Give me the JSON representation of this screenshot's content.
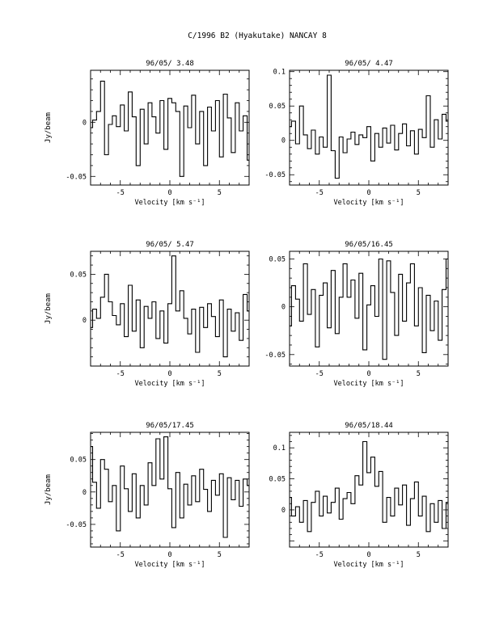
{
  "figure": {
    "title": "C/1996 B2 (Hyakutake)   NANCAY     8"
  },
  "chart_data": [
    {
      "type": "line",
      "title": "96/05/ 3.48",
      "xlabel": "Velocity [km s⁻¹]",
      "ylabel": "Jy/beam",
      "xlim": [
        -8,
        8
      ],
      "ylim": [
        -0.058,
        0.048
      ],
      "xticks": [
        -5,
        0,
        5
      ],
      "yticks": [
        -0.05,
        0
      ],
      "ytick_labels": [
        "-0.05",
        "0"
      ],
      "series": [
        {
          "x": [
            -8.0,
            -7.6,
            -7.2,
            -6.8,
            -6.4,
            -6.0,
            -5.6,
            -5.2,
            -4.8,
            -4.4,
            -4.0,
            -3.6,
            -3.2,
            -2.8,
            -2.4,
            -2.0,
            -1.6,
            -1.2,
            -0.8,
            -0.4,
            0.0,
            0.4,
            0.8,
            1.2,
            1.6,
            2.0,
            2.4,
            2.8,
            3.2,
            3.6,
            4.0,
            4.4,
            4.8,
            5.2,
            5.6,
            6.0,
            6.4,
            6.8,
            7.2,
            7.6,
            8.0
          ],
          "values": [
            -0.005,
            0.002,
            0.01,
            0.038,
            -0.03,
            -0.002,
            0.006,
            -0.004,
            0.016,
            -0.008,
            0.028,
            0.005,
            -0.04,
            0.012,
            -0.02,
            0.018,
            0.005,
            -0.01,
            0.02,
            -0.025,
            0.022,
            0.018,
            0.01,
            -0.05,
            0.015,
            -0.005,
            0.025,
            -0.02,
            0.01,
            -0.04,
            0.014,
            -0.008,
            0.02,
            -0.032,
            0.026,
            0.004,
            -0.028,
            0.018,
            -0.008,
            0.006,
            -0.035
          ]
        }
      ]
    },
    {
      "type": "line",
      "title": "96/05/ 4.47",
      "xlabel": "Velocity [km s⁻¹]",
      "ylabel": "",
      "xlim": [
        -8,
        8
      ],
      "ylim": [
        -0.065,
        0.102
      ],
      "xticks": [
        -5,
        0,
        5
      ],
      "yticks": [
        -0.05,
        0,
        0.05,
        0.1
      ],
      "ytick_labels": [
        "-0.05",
        "0",
        "0.05",
        "0.1"
      ],
      "series": [
        {
          "x": [
            -8.0,
            -7.6,
            -7.2,
            -6.8,
            -6.4,
            -6.0,
            -5.6,
            -5.2,
            -4.8,
            -4.4,
            -4.0,
            -3.6,
            -3.2,
            -2.8,
            -2.4,
            -2.0,
            -1.6,
            -1.2,
            -0.8,
            -0.4,
            0.0,
            0.4,
            0.8,
            1.2,
            1.6,
            2.0,
            2.4,
            2.8,
            3.2,
            3.6,
            4.0,
            4.4,
            4.8,
            5.2,
            5.6,
            6.0,
            6.4,
            6.8,
            7.2,
            7.6,
            8.0
          ],
          "values": [
            0.02,
            0.028,
            -0.005,
            0.05,
            0.008,
            -0.012,
            0.015,
            -0.02,
            0.005,
            -0.01,
            0.095,
            -0.015,
            -0.055,
            0.005,
            -0.018,
            0.002,
            0.012,
            -0.006,
            0.008,
            0.004,
            0.02,
            -0.03,
            0.01,
            -0.01,
            0.018,
            -0.004,
            0.022,
            -0.014,
            0.01,
            0.024,
            -0.008,
            0.014,
            -0.02,
            0.016,
            0.004,
            0.065,
            -0.01,
            0.03,
            0.002,
            0.038,
            0.028
          ]
        }
      ]
    },
    {
      "type": "line",
      "title": "96/05/ 5.47",
      "xlabel": "Velocity [km s⁻¹]",
      "ylabel": "Jy/beam",
      "xlim": [
        -8,
        8
      ],
      "ylim": [
        -0.05,
        0.075
      ],
      "xticks": [
        -5,
        0,
        5
      ],
      "yticks": [
        0,
        0.05
      ],
      "ytick_labels": [
        "0",
        "0.05"
      ],
      "series": [
        {
          "x": [
            -8.0,
            -7.6,
            -7.2,
            -6.8,
            -6.4,
            -6.0,
            -5.6,
            -5.2,
            -4.8,
            -4.4,
            -4.0,
            -3.6,
            -3.2,
            -2.8,
            -2.4,
            -2.0,
            -1.6,
            -1.2,
            -0.8,
            -0.4,
            0.0,
            0.4,
            0.8,
            1.2,
            1.6,
            2.0,
            2.4,
            2.8,
            3.2,
            3.6,
            4.0,
            4.4,
            4.8,
            5.2,
            5.6,
            6.0,
            6.4,
            6.8,
            7.2,
            7.6,
            8.0
          ],
          "values": [
            -0.008,
            0.012,
            0.002,
            0.025,
            0.05,
            0.02,
            0.005,
            -0.005,
            0.018,
            -0.018,
            0.038,
            -0.012,
            0.022,
            -0.03,
            0.015,
            0.002,
            0.02,
            -0.02,
            0.01,
            -0.025,
            0.018,
            0.07,
            0.01,
            0.032,
            0.002,
            -0.015,
            0.012,
            -0.035,
            0.014,
            -0.008,
            0.018,
            0.004,
            -0.018,
            0.022,
            -0.04,
            0.012,
            -0.012,
            0.008,
            -0.022,
            0.028,
            0.01
          ]
        }
      ]
    },
    {
      "type": "line",
      "title": "96/05/16.45",
      "xlabel": "Velocity [km s⁻¹]",
      "ylabel": "",
      "xlim": [
        -8,
        8
      ],
      "ylim": [
        -0.062,
        0.058
      ],
      "xticks": [
        -5,
        0,
        5
      ],
      "yticks": [
        -0.05,
        0,
        0.05
      ],
      "ytick_labels": [
        "-0.05",
        "0",
        "0.05"
      ],
      "series": [
        {
          "x": [
            -8.0,
            -7.6,
            -7.2,
            -6.8,
            -6.4,
            -6.0,
            -5.6,
            -5.2,
            -4.8,
            -4.4,
            -4.0,
            -3.6,
            -3.2,
            -2.8,
            -2.4,
            -2.0,
            -1.6,
            -1.2,
            -0.8,
            -0.4,
            0.0,
            0.4,
            0.8,
            1.2,
            1.6,
            2.0,
            2.4,
            2.8,
            3.2,
            3.6,
            4.0,
            4.4,
            4.8,
            5.2,
            5.6,
            6.0,
            6.4,
            6.8,
            7.2,
            7.6,
            8.0
          ],
          "values": [
            -0.02,
            0.022,
            0.008,
            -0.015,
            0.045,
            -0.008,
            0.018,
            -0.042,
            0.012,
            0.025,
            -0.022,
            0.038,
            -0.028,
            0.01,
            0.045,
            0.01,
            0.028,
            -0.012,
            0.035,
            -0.045,
            0.002,
            0.022,
            -0.01,
            0.05,
            -0.055,
            0.048,
            0.015,
            -0.03,
            0.034,
            -0.015,
            0.025,
            0.045,
            -0.02,
            0.02,
            -0.048,
            0.012,
            -0.025,
            0.006,
            -0.035,
            0.018,
            0.05
          ]
        }
      ]
    },
    {
      "type": "line",
      "title": "96/05/17.45",
      "xlabel": "Velocity [km s⁻¹]",
      "ylabel": "Jy/beam",
      "xlim": [
        -8,
        8
      ],
      "ylim": [
        -0.085,
        0.092
      ],
      "xticks": [
        -5,
        0,
        5
      ],
      "yticks": [
        -0.05,
        0,
        0.05
      ],
      "ytick_labels": [
        "-0.05",
        "0",
        "0.05"
      ],
      "series": [
        {
          "x": [
            -8.0,
            -7.6,
            -7.2,
            -6.8,
            -6.4,
            -6.0,
            -5.6,
            -5.2,
            -4.8,
            -4.4,
            -4.0,
            -3.6,
            -3.2,
            -2.8,
            -2.4,
            -2.0,
            -1.6,
            -1.2,
            -0.8,
            -0.4,
            0.0,
            0.4,
            0.8,
            1.2,
            1.6,
            2.0,
            2.4,
            2.8,
            3.2,
            3.6,
            4.0,
            4.4,
            4.8,
            5.2,
            5.6,
            6.0,
            6.4,
            6.8,
            7.2,
            7.6,
            8.0
          ],
          "values": [
            0.07,
            0.015,
            -0.025,
            0.05,
            0.035,
            -0.015,
            0.01,
            -0.06,
            0.04,
            0.005,
            -0.03,
            0.028,
            -0.04,
            0.01,
            -0.02,
            0.045,
            0.01,
            0.082,
            0.02,
            0.085,
            0.005,
            -0.055,
            0.03,
            -0.04,
            0.012,
            -0.02,
            0.025,
            -0.015,
            0.035,
            0.004,
            -0.03,
            0.018,
            -0.005,
            0.028,
            -0.07,
            0.022,
            -0.012,
            0.018,
            -0.022,
            0.02,
            0.01
          ]
        }
      ]
    },
    {
      "type": "line",
      "title": "96/05/18.44",
      "xlabel": "Velocity [km s⁻¹]",
      "ylabel": "",
      "xlim": [
        -8,
        8
      ],
      "ylim": [
        -0.06,
        0.125
      ],
      "xticks": [
        -5,
        0,
        5
      ],
      "yticks": [
        0,
        0.05,
        0.1
      ],
      "ytick_labels": [
        "0",
        "0.05",
        "0.1"
      ],
      "series": [
        {
          "x": [
            -8.0,
            -7.6,
            -7.2,
            -6.8,
            -6.4,
            -6.0,
            -5.6,
            -5.2,
            -4.8,
            -4.4,
            -4.0,
            -3.6,
            -3.2,
            -2.8,
            -2.4,
            -2.0,
            -1.6,
            -1.2,
            -0.8,
            -0.4,
            0.0,
            0.4,
            0.8,
            1.2,
            1.6,
            2.0,
            2.4,
            2.8,
            3.2,
            3.6,
            4.0,
            4.4,
            4.8,
            5.2,
            5.6,
            6.0,
            6.4,
            6.8,
            7.2,
            7.6,
            8.0
          ],
          "values": [
            0.02,
            -0.01,
            0.005,
            -0.02,
            0.015,
            -0.035,
            0.012,
            0.03,
            -0.01,
            0.022,
            -0.005,
            0.012,
            0.035,
            -0.015,
            0.018,
            0.028,
            0.01,
            0.055,
            0.04,
            0.11,
            0.06,
            0.085,
            0.038,
            0.062,
            -0.02,
            0.02,
            -0.01,
            0.035,
            0.008,
            0.04,
            -0.025,
            0.018,
            0.045,
            -0.01,
            0.022,
            -0.035,
            0.01,
            -0.02,
            0.015,
            -0.03,
            0.012
          ]
        }
      ]
    }
  ]
}
